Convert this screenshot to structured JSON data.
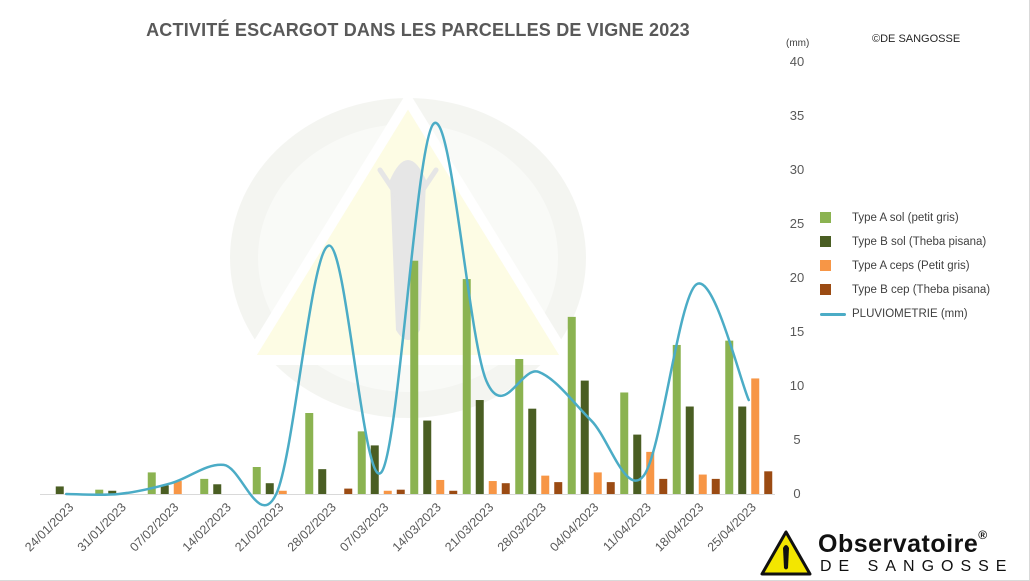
{
  "title": "ACTIVITÉ ESCARGOT DANS LES PARCELLES DE VIGNE 2023",
  "unit_label": "(mm)",
  "copyright": "©DE SANGOSSE",
  "logo": {
    "name": "Observatoire",
    "reg": "®",
    "sub": "DE SANGOSSE"
  },
  "colors": {
    "type_a_sol": "#8bb351",
    "type_b_sol": "#4a5e23",
    "type_a_ceps": "#f79646",
    "type_b_cep": "#9b4b13",
    "pluviometrie": "#4bacc6"
  },
  "chart_data": {
    "type": "bar",
    "categories": [
      "24/01/2023",
      "31/01/2023",
      "07/02/2023",
      "14/02/2023",
      "21/02/2023",
      "28/02/2023",
      "07/03/2023",
      "14/03/2023",
      "21/03/2023",
      "28/03/2023",
      "04/04/2023",
      "11/04/2023",
      "18/04/2023",
      "25/04/2023"
    ],
    "ylim": [
      0,
      40
    ],
    "yticks": [
      0,
      5,
      10,
      15,
      20,
      25,
      30,
      35,
      40
    ],
    "y_axis_position": "right",
    "grid": false,
    "legend_position": "right",
    "series": [
      {
        "name": "Type A sol (petit gris)",
        "kind": "bar",
        "color_key": "type_a_sol",
        "values": [
          0,
          0.4,
          2.0,
          1.4,
          2.5,
          7.5,
          5.8,
          21.6,
          19.9,
          12.5,
          16.4,
          9.4,
          13.8,
          14.2
        ]
      },
      {
        "name": "Type B sol (Theba pisana)",
        "kind": "bar",
        "color_key": "type_b_sol",
        "values": [
          0.7,
          0.3,
          0.8,
          0.9,
          1.0,
          2.3,
          4.5,
          6.8,
          8.7,
          7.9,
          10.5,
          5.5,
          8.1,
          8.1
        ]
      },
      {
        "name": "Type A ceps (Petit gris)",
        "kind": "bar",
        "color_key": "type_a_ceps",
        "values": [
          0,
          0,
          1.2,
          0,
          0.3,
          0,
          0.3,
          1.3,
          1.2,
          1.7,
          2.0,
          3.9,
          1.8,
          10.7
        ]
      },
      {
        "name": "Type B cep (Theba pisana)",
        "kind": "bar",
        "color_key": "type_b_cep",
        "values": [
          0,
          0,
          0,
          0,
          0,
          0.5,
          0.4,
          0.3,
          1.0,
          1.1,
          1.1,
          1.4,
          1.4,
          2.1
        ]
      },
      {
        "name": "PLUVIOMETRIE (mm)",
        "kind": "line",
        "smooth": true,
        "color_key": "pluviometrie",
        "values": [
          0,
          0,
          1.0,
          2.7,
          0,
          23.0,
          2.0,
          34.3,
          10.5,
          11.3,
          6.8,
          1.7,
          19.4,
          8.7
        ]
      }
    ]
  }
}
